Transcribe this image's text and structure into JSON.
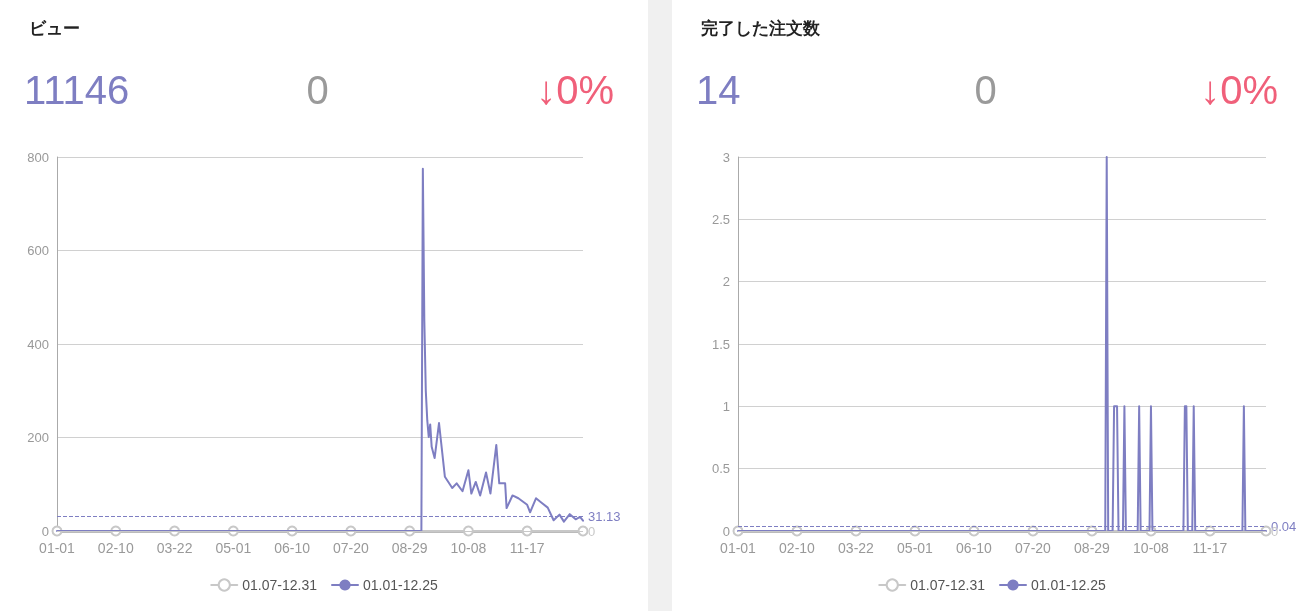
{
  "chart_data": [
    {
      "type": "line",
      "title": "ビュー",
      "annotations": [
        "11146",
        "0",
        "↓0%"
      ],
      "marker": "circle",
      "grid": "y",
      "legend": "bottom",
      "xlim": [
        "--01-01",
        "--12-25"
      ],
      "xticks": [
        {
          "value": "--01-01",
          "label": "01-01"
        },
        {
          "value": "--02-10",
          "label": "02-10"
        },
        {
          "value": "--03-22",
          "label": "03-22"
        },
        {
          "value": "--05-01",
          "label": "05-01"
        },
        {
          "value": "--06-10",
          "label": "06-10"
        },
        {
          "value": "--07-20",
          "label": "07-20"
        },
        {
          "value": "--08-29",
          "label": "08-29"
        },
        {
          "value": "--10-08",
          "label": "10-08"
        },
        {
          "value": "--11-17",
          "label": "11-17"
        }
      ],
      "ylim": [
        0,
        800
      ],
      "yticks": [
        0,
        200,
        400,
        600,
        800
      ],
      "ref_lines": [
        {
          "axis": "y",
          "value": 31.13,
          "label": "31.13",
          "color": "#7e7ec2",
          "line_style": "dashed"
        },
        {
          "axis": "y",
          "value": 0,
          "label": "0",
          "color": "#c8c8c8"
        }
      ],
      "series": [
        {
          "name": "01.07-12.31",
          "color": "#c8c8c8",
          "x": [
            "--01-01",
            "--02-10",
            "--03-22",
            "--05-01",
            "--06-10",
            "--07-20",
            "--08-29",
            "--10-08",
            "--11-17",
            "--12-25"
          ],
          "values": [
            0,
            0,
            0,
            0,
            0,
            0,
            0,
            0,
            0,
            0
          ]
        },
        {
          "name": "01.01-12.25",
          "color": "#7e7ec2",
          "marker": "none",
          "x": [
            "--01-01",
            "--02-10",
            "--03-22",
            "--05-01",
            "--06-10",
            "--07-20",
            "--08-29",
            "--09-06",
            "--09-07",
            "--09-08",
            "--09-09",
            "--09-10",
            "--09-11",
            "--09-12",
            "--09-13",
            "--09-15",
            "--09-18",
            "--09-22",
            "--09-27",
            "--09-30",
            "--10-04",
            "--10-08",
            "--10-10",
            "--10-13",
            "--10-16",
            "--10-20",
            "--10-23",
            "--10-27",
            "--10-29",
            "--11-02",
            "--11-03",
            "--11-07",
            "--11-11",
            "--11-17",
            "--11-19",
            "--11-23",
            "--11-27",
            "--12-01",
            "--12-05",
            "--12-09",
            "--12-12",
            "--12-16",
            "--12-20",
            "--12-23",
            "--12-25"
          ],
          "values": [
            0,
            0,
            0,
            0,
            0,
            0,
            0,
            0,
            775,
            450,
            300,
            237,
            201,
            228,
            180,
            156,
            231,
            116,
            92,
            102,
            85,
            130,
            80,
            105,
            76,
            125,
            80,
            184,
            102,
            102,
            49,
            76,
            70,
            56,
            40,
            70,
            60,
            50,
            23,
            35,
            20,
            36,
            25,
            30,
            22
          ]
        }
      ]
    },
    {
      "type": "line",
      "title": "完了した注文数",
      "annotations": [
        "14",
        "0",
        "↓0%"
      ],
      "marker": "circle",
      "grid": "y",
      "legend": "bottom",
      "xlim": [
        "--01-01",
        "--12-25"
      ],
      "xticks": [
        {
          "value": "--01-01",
          "label": "01-01"
        },
        {
          "value": "--02-10",
          "label": "02-10"
        },
        {
          "value": "--03-22",
          "label": "03-22"
        },
        {
          "value": "--05-01",
          "label": "05-01"
        },
        {
          "value": "--06-10",
          "label": "06-10"
        },
        {
          "value": "--07-20",
          "label": "07-20"
        },
        {
          "value": "--08-29",
          "label": "08-29"
        },
        {
          "value": "--10-08",
          "label": "10-08"
        },
        {
          "value": "--11-17",
          "label": "11-17"
        }
      ],
      "ylim": [
        0,
        3
      ],
      "yticks": [
        0,
        0.5,
        1,
        1.5,
        2,
        2.5,
        3
      ],
      "ref_lines": [
        {
          "axis": "y",
          "value": 0.04,
          "label": "0.04",
          "color": "#7e7ec2",
          "line_style": "dashed"
        },
        {
          "axis": "y",
          "value": 0,
          "label": "0",
          "color": "#c8c8c8"
        }
      ],
      "series": [
        {
          "name": "01.07-12.31",
          "color": "#c8c8c8",
          "x": [
            "--01-01",
            "--02-10",
            "--03-22",
            "--05-01",
            "--06-10",
            "--07-20",
            "--08-29",
            "--10-08",
            "--11-17",
            "--12-25"
          ],
          "values": [
            0,
            0,
            0,
            0,
            0,
            0,
            0,
            0,
            0,
            0
          ]
        },
        {
          "name": "01.01-12.25",
          "color": "#7e7ec2",
          "marker": "none",
          "x": [
            "--01-01",
            "--02-10",
            "--03-22",
            "--05-01",
            "--06-10",
            "--07-20",
            "--08-29",
            "--09-07",
            "--09-08",
            "--09-09",
            "--09-12",
            "--09-13",
            "--09-14",
            "--09-15",
            "--09-16",
            "--09-19",
            "--09-20",
            "--09-21",
            "--09-29",
            "--09-30",
            "--10-01",
            "--10-07",
            "--10-08",
            "--10-09",
            "--10-30",
            "--10-31",
            "--11-01",
            "--11-02",
            "--11-05",
            "--11-06",
            "--11-07",
            "--12-09",
            "--12-10",
            "--12-11",
            "--12-25"
          ],
          "values": [
            0,
            0,
            0,
            0,
            0,
            0,
            0,
            0,
            3,
            0,
            0,
            1,
            1,
            1,
            0,
            0,
            1,
            0,
            0,
            1,
            0,
            0,
            1,
            0,
            0,
            1,
            1,
            0,
            0,
            1,
            0,
            0,
            1,
            0,
            0
          ]
        }
      ]
    }
  ]
}
